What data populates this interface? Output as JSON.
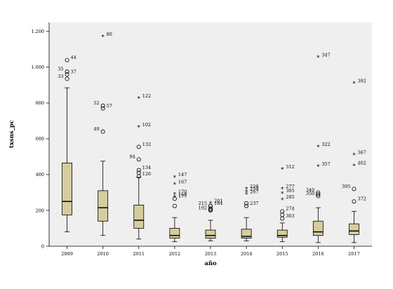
{
  "chart_data": {
    "type": "boxplot",
    "xlabel": "año",
    "ylabel": "txsns_pc",
    "ylim": [
      0,
      1250
    ],
    "yticks": [
      {
        "value": 0,
        "label": "0"
      },
      {
        "value": 200,
        "label": "200"
      },
      {
        "value": 400,
        "label": "400"
      },
      {
        "value": 600,
        "label": "600"
      },
      {
        "value": 800,
        "label": "800"
      },
      {
        "value": 1000,
        "label": "1.000"
      },
      {
        "value": 1200,
        "label": "1.200"
      }
    ],
    "colors": {
      "box_fill": "#d6cd9e",
      "plot_background": "#efefef"
    },
    "grid": false,
    "categories": [
      "2009",
      "2010",
      "2011",
      "2012",
      "2013",
      "2014",
      "2015",
      "2016",
      "2017"
    ],
    "boxes": [
      {
        "category": "2009",
        "whisker_low": 80,
        "q1": 175,
        "median": 250,
        "q3": 465,
        "whisker_high": 885,
        "outliers": [
          {
            "value": 1040,
            "marker": "circle",
            "label": "44"
          },
          {
            "value": 975,
            "marker": "circle",
            "label": "35"
          },
          {
            "value": 960,
            "marker": "circle",
            "label": "37"
          },
          {
            "value": 935,
            "marker": "circle",
            "label": "33"
          }
        ]
      },
      {
        "category": "2010",
        "whisker_low": 60,
        "q1": 140,
        "median": 215,
        "q3": 310,
        "whisker_high": 475,
        "outliers": [
          {
            "value": 1170,
            "marker": "star",
            "label": "80"
          },
          {
            "value": 785,
            "marker": "circle",
            "label": "52"
          },
          {
            "value": 770,
            "marker": "circle",
            "label": "57"
          },
          {
            "value": 640,
            "marker": "circle",
            "label": "49"
          }
        ]
      },
      {
        "category": "2011",
        "whisker_low": 40,
        "q1": 100,
        "median": 145,
        "q3": 230,
        "whisker_high": 385,
        "outliers": [
          {
            "value": 825,
            "marker": "star",
            "label": "122"
          },
          {
            "value": 665,
            "marker": "star",
            "label": "102"
          },
          {
            "value": 555,
            "marker": "circle",
            "label": "132"
          },
          {
            "value": 485,
            "marker": "circle",
            "label": "94"
          },
          {
            "value": 425,
            "marker": "circle",
            "label": "134"
          },
          {
            "value": 410,
            "marker": "circle",
            "label": ""
          },
          {
            "value": 390,
            "marker": "circle",
            "label": "126"
          }
        ]
      },
      {
        "category": "2012",
        "whisker_low": 25,
        "q1": 45,
        "median": 60,
        "q3": 100,
        "whisker_high": 160,
        "outliers": [
          {
            "value": 385,
            "marker": "star",
            "label": "147"
          },
          {
            "value": 345,
            "marker": "star",
            "label": "167"
          },
          {
            "value": 290,
            "marker": "star",
            "label": "170"
          },
          {
            "value": 275,
            "marker": "star",
            "label": "168"
          },
          {
            "value": 265,
            "marker": "circle",
            "label": "177"
          },
          {
            "value": 225,
            "marker": "circle",
            "label": ""
          }
        ]
      },
      {
        "category": "2013",
        "whisker_low": 30,
        "q1": 45,
        "median": 60,
        "q3": 90,
        "whisker_high": 145,
        "outliers": [
          {
            "value": 240,
            "marker": "star",
            "label": "201"
          },
          {
            "value": 225,
            "marker": "circle",
            "label": "215"
          },
          {
            "value": 225,
            "marker": "circle",
            "label": "184"
          },
          {
            "value": 210,
            "marker": "circle",
            "label": ""
          },
          {
            "value": 205,
            "marker": "circle",
            "label": ""
          },
          {
            "value": 200,
            "marker": "circle",
            "label": "192"
          }
        ]
      },
      {
        "category": "2014",
        "whisker_low": 30,
        "q1": 45,
        "median": 55,
        "q3": 95,
        "whisker_high": 160,
        "outliers": [
          {
            "value": 320,
            "marker": "star",
            "label": "229"
          },
          {
            "value": 305,
            "marker": "star",
            "label": "259"
          },
          {
            "value": 290,
            "marker": "star",
            "label": "267"
          },
          {
            "value": 240,
            "marker": "circle",
            "label": ""
          },
          {
            "value": 225,
            "marker": "circle",
            "label": "237"
          }
        ]
      },
      {
        "category": "2015",
        "whisker_low": 25,
        "q1": 50,
        "median": 60,
        "q3": 90,
        "whisker_high": 130,
        "outliers": [
          {
            "value": 430,
            "marker": "star",
            "label": "312"
          },
          {
            "value": 320,
            "marker": "star",
            "label": "277"
          },
          {
            "value": 295,
            "marker": "star",
            "label": "305"
          },
          {
            "value": 260,
            "marker": "star",
            "label": "285"
          },
          {
            "value": 195,
            "marker": "circle",
            "label": "274"
          },
          {
            "value": 175,
            "marker": "circle",
            "label": ""
          },
          {
            "value": 155,
            "marker": "circle",
            "label": "303"
          }
        ]
      },
      {
        "category": "2016",
        "whisker_low": 20,
        "q1": 60,
        "median": 80,
        "q3": 140,
        "whisker_high": 215,
        "outliers": [
          {
            "value": 1055,
            "marker": "star",
            "label": "347"
          },
          {
            "value": 555,
            "marker": "star",
            "label": "322"
          },
          {
            "value": 445,
            "marker": "star",
            "label": "357"
          },
          {
            "value": 300,
            "marker": "circle",
            "label": "340"
          },
          {
            "value": 290,
            "marker": "circle",
            "label": ""
          },
          {
            "value": 280,
            "marker": "circle",
            "label": "350"
          }
        ]
      },
      {
        "category": "2017",
        "whisker_low": 20,
        "q1": 65,
        "median": 85,
        "q3": 125,
        "whisker_high": 195,
        "outliers": [
          {
            "value": 910,
            "marker": "star",
            "label": "392"
          },
          {
            "value": 510,
            "marker": "star",
            "label": "367"
          },
          {
            "value": 450,
            "marker": "star",
            "label": "402"
          },
          {
            "value": 320,
            "marker": "circle",
            "label": "395"
          },
          {
            "value": 250,
            "marker": "circle",
            "label": "372"
          }
        ]
      }
    ]
  }
}
